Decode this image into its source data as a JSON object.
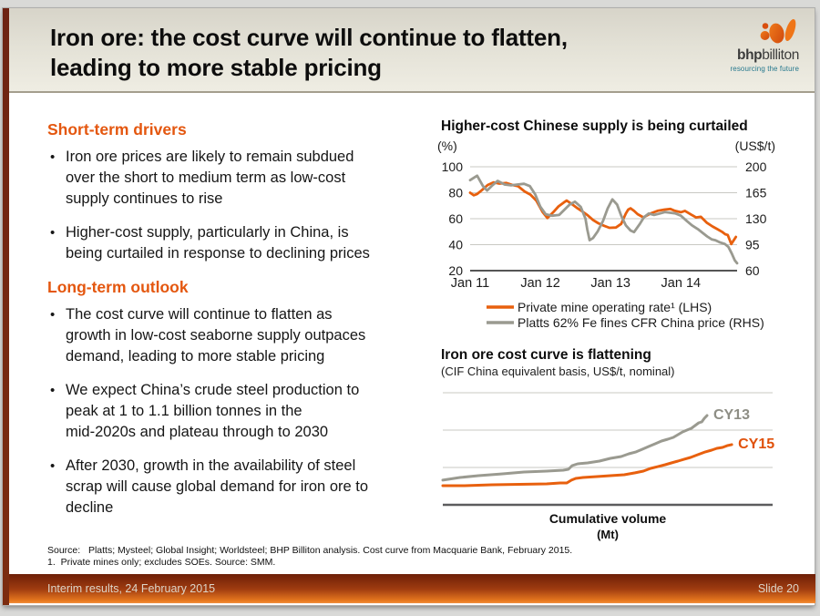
{
  "colors": {
    "accent_orange": "#e4570f",
    "line_orange": "#e8600e",
    "line_gray": "#9a9a90",
    "maroon_bar": "#6e2313",
    "footer_top": "#6d1f07",
    "footer_bottom": "#f29040",
    "tagline_teal": "#27798e"
  },
  "header": {
    "title_line1": "Iron ore: the cost curve will continue to flatten,",
    "title_line2": "leading to more stable pricing",
    "logo": {
      "name_bold": "bhp",
      "name_rest": "billiton",
      "tagline": "resourcing the future"
    }
  },
  "left_column": {
    "sections": [
      {
        "heading": "Short-term drivers",
        "bullets": [
          "Iron ore prices are likely to remain subdued\nover the short to medium term as low-cost\nsupply continues to rise",
          "Higher-cost supply, particularly in China, is\nbeing curtailed in response to declining prices"
        ]
      },
      {
        "heading": "Long-term outlook",
        "bullets": [
          "The cost curve will continue to flatten as\ngrowth in low-cost seaborne supply outpaces\ndemand, leading to more stable pricing",
          "We expect China’s crude steel production to\npeak at 1 to 1.1 billion tonnes in the\nmid-2020s and plateau through to 2030",
          "After 2030, growth in the availability of steel\nscrap will cause global demand for iron ore to\ndecline"
        ]
      }
    ]
  },
  "chart_data": [
    {
      "id": "chinese-supply",
      "type": "line",
      "title": "Higher-cost Chinese supply is being curtailed",
      "grid": "horizontal",
      "legend_position": "bottom",
      "left_axis": {
        "unit": "(%)",
        "ticks": [
          100,
          80,
          60,
          40,
          20
        ],
        "range": [
          20,
          100
        ]
      },
      "right_axis": {
        "unit": "(US$/t)",
        "ticks": [
          200,
          165,
          130,
          95,
          60
        ],
        "range": [
          60,
          200
        ]
      },
      "x_axis": {
        "tick_labels": [
          "Jan 11",
          "Jan 12",
          "Jan 13",
          "Jan 14"
        ],
        "tick_months": [
          0,
          12,
          24,
          36
        ],
        "unit": "months from Jan 2011",
        "range": [
          0,
          45.6
        ]
      },
      "series": [
        {
          "name": "Private mine operating rate¹ (LHS)",
          "axis": "left",
          "color": "#e8600e",
          "points": [
            [
              0,
              80
            ],
            [
              0.6,
              78
            ],
            [
              1.2,
              79
            ],
            [
              2,
              82
            ],
            [
              3,
              86
            ],
            [
              4,
              88
            ],
            [
              5,
              87
            ],
            [
              6.2,
              87.5
            ],
            [
              7.2,
              86
            ],
            [
              8.2,
              85
            ],
            [
              9.3,
              81
            ],
            [
              10.3,
              78.5
            ],
            [
              11.3,
              74
            ],
            [
              12.4,
              65
            ],
            [
              13.2,
              60.5
            ],
            [
              14.2,
              65
            ],
            [
              15.1,
              69.5
            ],
            [
              16,
              72.5
            ],
            [
              16.5,
              74
            ],
            [
              17.3,
              71.5
            ],
            [
              18.2,
              68.5
            ],
            [
              19.2,
              65.5
            ],
            [
              20.1,
              62.5
            ],
            [
              21,
              59
            ],
            [
              21.9,
              56.5
            ],
            [
              22.9,
              54.5
            ],
            [
              23.8,
              53
            ],
            [
              24.9,
              53.2
            ],
            [
              25.8,
              56
            ],
            [
              26.2,
              60
            ],
            [
              26.6,
              64
            ],
            [
              27,
              67
            ],
            [
              27.4,
              68
            ],
            [
              28,
              66
            ],
            [
              28.6,
              63.5
            ],
            [
              29.6,
              61
            ],
            [
              30.8,
              64
            ],
            [
              32,
              66
            ],
            [
              33.2,
              67
            ],
            [
              34.2,
              67.5
            ],
            [
              35,
              66
            ],
            [
              36,
              65
            ],
            [
              36.7,
              66
            ],
            [
              37.8,
              63
            ],
            [
              38.6,
              61
            ],
            [
              39.4,
              61.5
            ],
            [
              40.4,
              57
            ],
            [
              41.4,
              54
            ],
            [
              42.2,
              52
            ],
            [
              43,
              50
            ],
            [
              43.6,
              48
            ],
            [
              44,
              47.5
            ],
            [
              44.6,
              40.5
            ],
            [
              45.4,
              46
            ]
          ]
        },
        {
          "name": "Platts 62% Fe fines CFR China price (RHS)",
          "axis": "right",
          "color": "#9a9a90",
          "points": [
            [
              0,
              182
            ],
            [
              0.8,
              186
            ],
            [
              1.2,
              188
            ],
            [
              2.2,
              174
            ],
            [
              2.9,
              168
            ],
            [
              3.8,
              175
            ],
            [
              4.7,
              181
            ],
            [
              5.9,
              176
            ],
            [
              7,
              175
            ],
            [
              8.1,
              176
            ],
            [
              9.2,
              177
            ],
            [
              10.2,
              174
            ],
            [
              11.1,
              163
            ],
            [
              12,
              146
            ],
            [
              12.9,
              136
            ],
            [
              14,
              134
            ],
            [
              15.2,
              135
            ],
            [
              16.1,
              142
            ],
            [
              17,
              149
            ],
            [
              17.9,
              153
            ],
            [
              18.9,
              146
            ],
            [
              19.7,
              130
            ],
            [
              20,
              116
            ],
            [
              20.4,
              101
            ],
            [
              21,
              104
            ],
            [
              21.8,
              113
            ],
            [
              22.7,
              127
            ],
            [
              23.5,
              144
            ],
            [
              24.3,
              156
            ],
            [
              25.1,
              149
            ],
            [
              25.8,
              134
            ],
            [
              26.6,
              121
            ],
            [
              27.4,
              114
            ],
            [
              28,
              112
            ],
            [
              29,
              123
            ],
            [
              29.7,
              132
            ],
            [
              30.5,
              137
            ],
            [
              31.4,
              135
            ],
            [
              32.4,
              137
            ],
            [
              33.3,
              139
            ],
            [
              34.2,
              138
            ],
            [
              35.1,
              137
            ],
            [
              36,
              134
            ],
            [
              37,
              127
            ],
            [
              37.9,
              121
            ],
            [
              38.9,
              116
            ],
            [
              39.7,
              111
            ],
            [
              40.5,
              106
            ],
            [
              41.3,
              102
            ],
            [
              41.9,
              101
            ],
            [
              42.7,
              98
            ],
            [
              43.5,
              96
            ],
            [
              44.1,
              92
            ],
            [
              44.7,
              83
            ],
            [
              45.2,
              74
            ],
            [
              45.6,
              70
            ]
          ]
        }
      ]
    },
    {
      "id": "cost-curve",
      "type": "line",
      "title": "Iron ore cost curve is flattening",
      "subtitle": "(CIF China equivalent basis, US$/t, nominal)",
      "xlabel": "Cumulative volume",
      "xlabel_unit": "(Mt)",
      "grid": "horizontal",
      "axes_note": "axes carry no numeric tick labels; point values are normalized 0-100 within the plot area",
      "series": [
        {
          "name": "CY13",
          "color": "#9a9a90",
          "label_color": "#8e8e85",
          "points": [
            [
              0,
              22
            ],
            [
              5.2,
              24.4
            ],
            [
              10.8,
              26
            ],
            [
              17.7,
              27.6
            ],
            [
              24.6,
              29.3
            ],
            [
              31.5,
              30.1
            ],
            [
              36.5,
              30.9
            ],
            [
              38.1,
              31.7
            ],
            [
              39.2,
              35
            ],
            [
              40.9,
              36.6
            ],
            [
              43.9,
              37.4
            ],
            [
              47.5,
              39
            ],
            [
              50.8,
              41.5
            ],
            [
              54.1,
              43.1
            ],
            [
              56.4,
              45.5
            ],
            [
              58.6,
              47.2
            ],
            [
              60.5,
              49.6
            ],
            [
              62.4,
              52
            ],
            [
              64.4,
              54.5
            ],
            [
              66.3,
              56.9
            ],
            [
              68.2,
              58.5
            ],
            [
              69.9,
              60.2
            ],
            [
              71.3,
              62.6
            ],
            [
              72.7,
              65
            ],
            [
              74,
              66.7
            ],
            [
              75.4,
              68.3
            ],
            [
              76.5,
              70.7
            ],
            [
              77.6,
              73.2
            ],
            [
              78.5,
              74
            ],
            [
              79.3,
              77.2
            ],
            [
              80.1,
              79.7
            ]
          ]
        },
        {
          "name": "CY15",
          "color": "#e8600e",
          "label_color": "#e0510b",
          "points": [
            [
              0,
              17.1
            ],
            [
              6.6,
              17.1
            ],
            [
              14.9,
              17.9
            ],
            [
              23.2,
              18.3
            ],
            [
              31.5,
              18.7
            ],
            [
              35.6,
              19.5
            ],
            [
              37.6,
              19.5
            ],
            [
              39,
              22
            ],
            [
              40.3,
              23.6
            ],
            [
              42.5,
              24.4
            ],
            [
              46.7,
              25.2
            ],
            [
              50.8,
              26
            ],
            [
              55,
              26.8
            ],
            [
              58.3,
              28.5
            ],
            [
              60.8,
              30.1
            ],
            [
              63,
              32.5
            ],
            [
              65.2,
              34.1
            ],
            [
              67.4,
              35.8
            ],
            [
              69.3,
              37.4
            ],
            [
              71.3,
              39
            ],
            [
              73.2,
              40.7
            ],
            [
              75.1,
              42.3
            ],
            [
              77.3,
              44.7
            ],
            [
              79.6,
              47.2
            ],
            [
              81.5,
              48.8
            ],
            [
              83.1,
              50.4
            ],
            [
              84.8,
              51.2
            ],
            [
              86.2,
              52.8
            ],
            [
              87.6,
              53.7
            ]
          ]
        }
      ]
    }
  ],
  "footnotes": {
    "line1": "Source:   Platts; Mysteel; Global Insight; Worldsteel; BHP Billiton analysis. Cost curve from Macquarie Bank, February 2015.",
    "line2": "1.  Private mines only; excludes SOEs. Source: SMM."
  },
  "footer": {
    "left": "Interim results, 24 February 2015",
    "right": "Slide 20"
  }
}
